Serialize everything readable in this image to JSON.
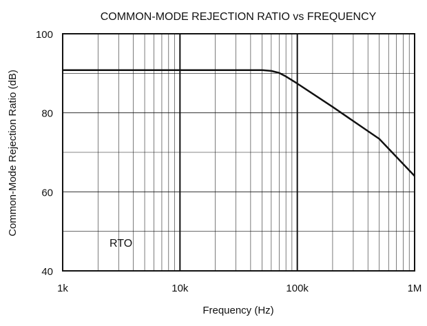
{
  "chart_data": {
    "type": "line",
    "title": "COMMON-MODE REJECTION RATIO vs FREQUENCY",
    "xlabel": "Frequency (Hz)",
    "ylabel": "Common-Mode Rejection Ratio (dB)",
    "x_scale": "log",
    "xlim": [
      1000,
      1000000
    ],
    "ylim": [
      40,
      100
    ],
    "x_ticks": [
      1000,
      10000,
      100000,
      1000000
    ],
    "x_tick_labels": [
      "1k",
      "10k",
      "100k",
      "1M"
    ],
    "y_ticks": [
      40,
      60,
      80,
      100
    ],
    "y_tick_labels": [
      "40",
      "60",
      "80",
      "100"
    ],
    "grid": true,
    "annotations": [
      {
        "text": "RTO"
      }
    ],
    "series": [
      {
        "name": "",
        "x": [
          1000,
          10000,
          50000,
          60000,
          70000,
          80000,
          100000,
          200000,
          500000,
          1000000
        ],
        "y": [
          90.8,
          90.8,
          90.8,
          90.6,
          90.1,
          89.2,
          87.4,
          81.5,
          73.4,
          64.0
        ]
      }
    ]
  }
}
